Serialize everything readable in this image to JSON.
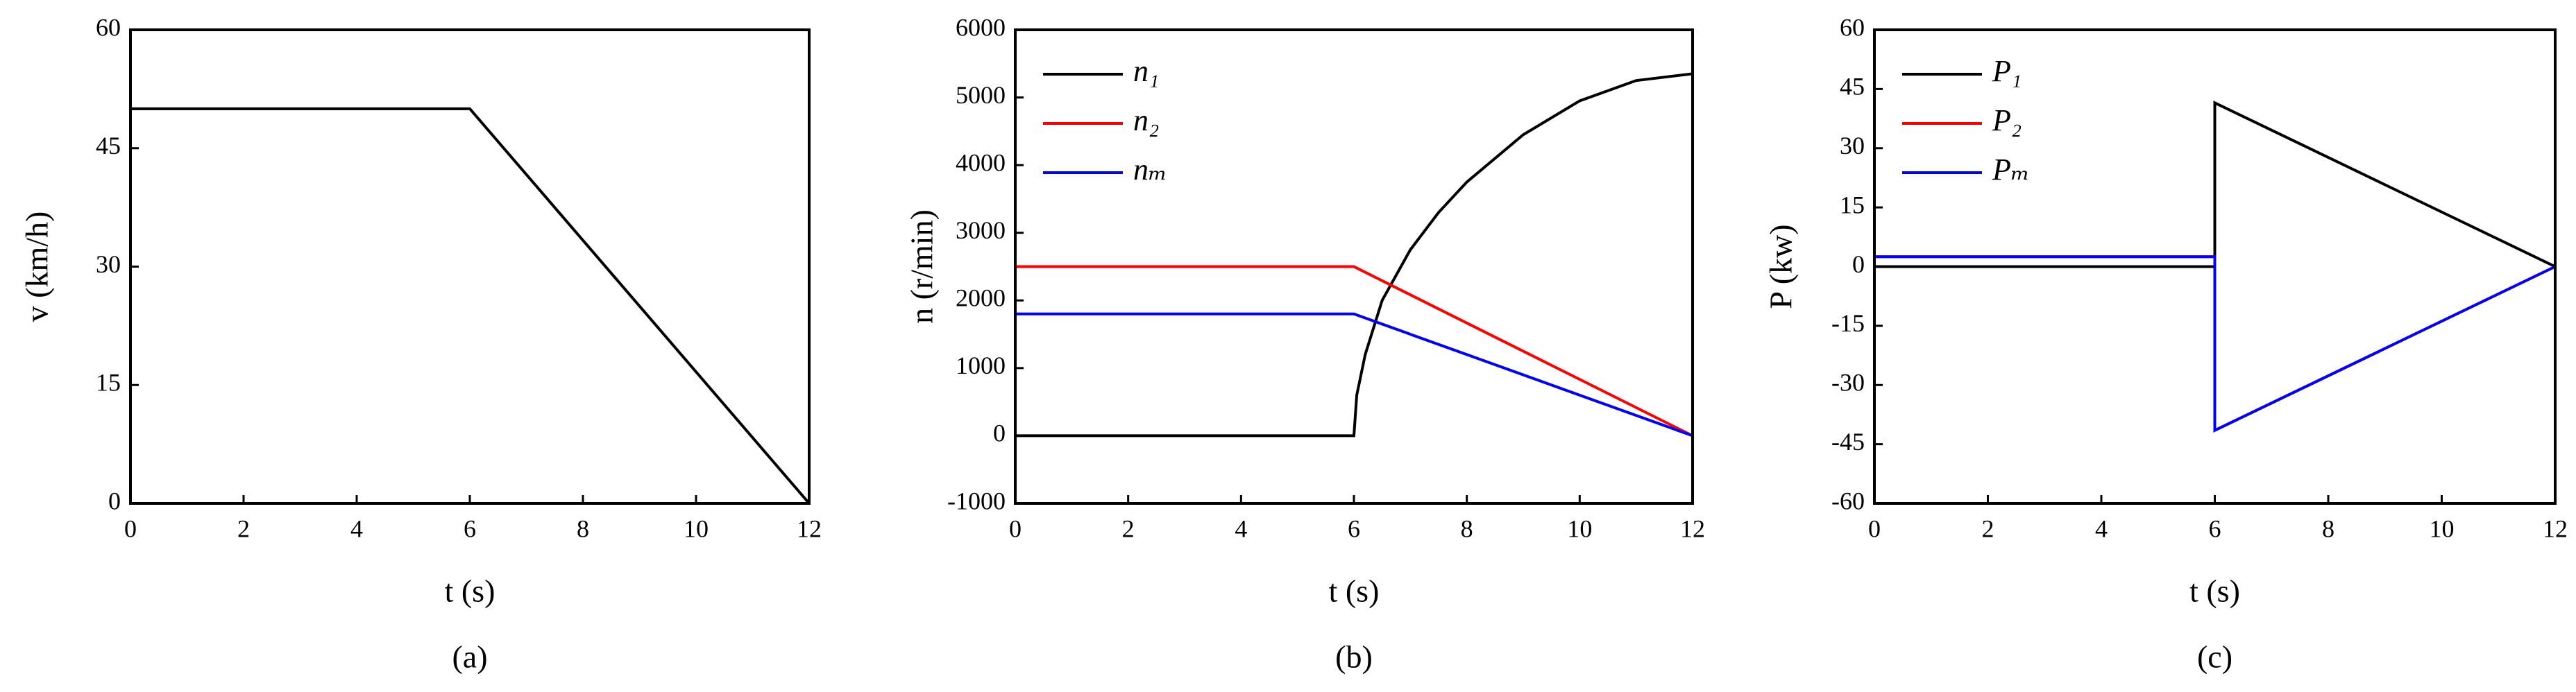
{
  "chart_data": [
    {
      "type": "line",
      "xlabel": "t (s)",
      "ylabel": "v (km/h)",
      "caption": "(a)",
      "xlim": [
        0,
        12
      ],
      "xticks": [
        0,
        2,
        4,
        6,
        8,
        10,
        12
      ],
      "ylim": [
        0,
        60
      ],
      "yticks": [
        0,
        15,
        30,
        45,
        60
      ],
      "series": [
        {
          "color": "#000000",
          "x": [
            0,
            6,
            12
          ],
          "values": [
            50,
            50,
            0
          ]
        }
      ]
    },
    {
      "type": "line",
      "xlabel": "t (s)",
      "ylabel": "n (r/min)",
      "caption": "(b)",
      "legend": "upper left",
      "xlim": [
        0,
        12
      ],
      "xticks": [
        0,
        2,
        4,
        6,
        8,
        10,
        12
      ],
      "ylim": [
        -1000,
        6000
      ],
      "yticks": [
        -1000,
        0,
        1000,
        2000,
        3000,
        4000,
        5000,
        6000
      ],
      "series": [
        {
          "name": "n₁",
          "color": "#000000",
          "x": [
            0,
            6,
            6.05,
            6.2,
            6.5,
            7,
            7.5,
            8,
            9,
            10,
            11,
            12
          ],
          "values": [
            0,
            0,
            600,
            1200,
            2000,
            2750,
            3300,
            3750,
            4450,
            4950,
            5250,
            5350
          ]
        },
        {
          "name": "n₂",
          "color": "#ff0000",
          "x": [
            0,
            6,
            12
          ],
          "values": [
            2500,
            2500,
            0
          ]
        },
        {
          "name": "nₘ",
          "color": "#0000ff",
          "x": [
            0,
            6,
            12
          ],
          "values": [
            1800,
            1800,
            0
          ]
        }
      ]
    },
    {
      "type": "line",
      "xlabel": "t (s)",
      "ylabel": "P (kw)",
      "caption": "(c)",
      "legend": "upper left",
      "xlim": [
        0,
        12
      ],
      "xticks": [
        0,
        2,
        4,
        6,
        8,
        10,
        12
      ],
      "ylim": [
        -60,
        60
      ],
      "yticks": [
        -60,
        -45,
        -30,
        -15,
        0,
        15,
        30,
        45,
        60
      ],
      "series": [
        {
          "name": "P₁",
          "color": "#000000",
          "x": [
            0,
            6,
            6,
            12
          ],
          "values": [
            0,
            0,
            41.5,
            0
          ]
        },
        {
          "name": "P₂",
          "color": "#ff0000",
          "x": [
            0,
            6,
            6,
            12
          ],
          "values": [
            2.5,
            2.5,
            -41.5,
            0
          ]
        },
        {
          "name": "Pₘ",
          "color": "#0000ff",
          "x": [
            0,
            6,
            6,
            12
          ],
          "values": [
            2.5,
            2.5,
            -41.5,
            0
          ]
        }
      ]
    }
  ]
}
